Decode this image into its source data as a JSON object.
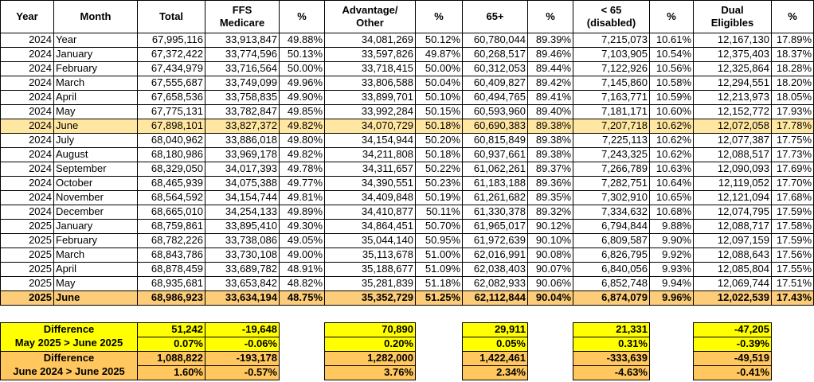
{
  "headers": [
    [
      "Year"
    ],
    [
      "Month"
    ],
    [
      "Total"
    ],
    [
      "FFS",
      "Medicare"
    ],
    [
      "%"
    ],
    [
      "Advantage/",
      "Other"
    ],
    [
      "%"
    ],
    [
      "65+"
    ],
    [
      "%"
    ],
    [
      "< 65",
      "(disabled)"
    ],
    [
      "%"
    ],
    [
      "Dual",
      "Eligibles"
    ],
    [
      "%"
    ]
  ],
  "rows": [
    [
      "2024",
      "Year",
      "67,995,116",
      "33,913,847",
      "49.88%",
      "34,081,269",
      "50.12%",
      "60,780,044",
      "89.39%",
      "7,215,073",
      "10.61%",
      "12,167,130",
      "17.89%"
    ],
    [
      "2024",
      "January",
      "67,372,422",
      "33,774,596",
      "50.13%",
      "33,597,826",
      "49.87%",
      "60,268,517",
      "89.46%",
      "7,103,905",
      "10.54%",
      "12,375,403",
      "18.37%"
    ],
    [
      "2024",
      "February",
      "67,434,979",
      "33,716,564",
      "50.00%",
      "33,718,415",
      "50.00%",
      "60,312,053",
      "89.44%",
      "7,122,926",
      "10.56%",
      "12,325,864",
      "18.28%"
    ],
    [
      "2024",
      "March",
      "67,555,687",
      "33,749,099",
      "49.96%",
      "33,806,588",
      "50.04%",
      "60,409,827",
      "89.42%",
      "7,145,860",
      "10.58%",
      "12,294,551",
      "18.20%"
    ],
    [
      "2024",
      "April",
      "67,658,536",
      "33,758,835",
      "49.90%",
      "33,899,701",
      "50.10%",
      "60,494,765",
      "89.41%",
      "7,163,771",
      "10.59%",
      "12,213,973",
      "18.05%"
    ],
    [
      "2024",
      "May",
      "67,775,131",
      "33,782,847",
      "49.85%",
      "33,992,284",
      "50.15%",
      "60,593,960",
      "89.40%",
      "7,181,171",
      "10.60%",
      "12,152,772",
      "17.93%"
    ],
    [
      "2024",
      "June",
      "67,898,101",
      "33,827,372",
      "49.82%",
      "34,070,729",
      "50.18%",
      "60,690,383",
      "89.38%",
      "7,207,718",
      "10.62%",
      "12,072,058",
      "17.78%"
    ],
    [
      "2024",
      "July",
      "68,040,962",
      "33,886,018",
      "49.80%",
      "34,154,944",
      "50.20%",
      "60,815,849",
      "89.38%",
      "7,225,113",
      "10.62%",
      "12,077,387",
      "17.75%"
    ],
    [
      "2024",
      "August",
      "68,180,986",
      "33,969,178",
      "49.82%",
      "34,211,808",
      "50.18%",
      "60,937,661",
      "89.38%",
      "7,243,325",
      "10.62%",
      "12,088,517",
      "17.73%"
    ],
    [
      "2024",
      "September",
      "68,329,050",
      "34,017,393",
      "49.78%",
      "34,311,657",
      "50.22%",
      "61,062,261",
      "89.37%",
      "7,266,789",
      "10.63%",
      "12,090,093",
      "17.69%"
    ],
    [
      "2024",
      "October",
      "68,465,939",
      "34,075,388",
      "49.77%",
      "34,390,551",
      "50.23%",
      "61,183,188",
      "89.36%",
      "7,282,751",
      "10.64%",
      "12,119,052",
      "17.70%"
    ],
    [
      "2024",
      "November",
      "68,564,592",
      "34,154,744",
      "49.81%",
      "34,409,848",
      "50.19%",
      "61,261,682",
      "89.35%",
      "7,302,910",
      "10.65%",
      "12,121,094",
      "17.68%"
    ],
    [
      "2024",
      "December",
      "68,665,010",
      "34,254,133",
      "49.89%",
      "34,410,877",
      "50.11%",
      "61,330,378",
      "89.32%",
      "7,334,632",
      "10.68%",
      "12,074,795",
      "17.59%"
    ],
    [
      "2025",
      "January",
      "68,759,861",
      "33,895,410",
      "49.30%",
      "34,864,451",
      "50.70%",
      "61,965,017",
      "90.12%",
      "6,794,844",
      "9.88%",
      "12,088,717",
      "17.58%"
    ],
    [
      "2025",
      "February",
      "68,782,226",
      "33,738,086",
      "49.05%",
      "35,044,140",
      "50.95%",
      "61,972,639",
      "90.10%",
      "6,809,587",
      "9.90%",
      "12,097,159",
      "17.59%"
    ],
    [
      "2025",
      "March",
      "68,843,786",
      "33,730,108",
      "49.00%",
      "35,113,678",
      "51.00%",
      "62,016,991",
      "90.08%",
      "6,826,795",
      "9.92%",
      "12,088,643",
      "17.56%"
    ],
    [
      "2025",
      "April",
      "68,878,459",
      "33,689,782",
      "48.91%",
      "35,188,677",
      "51.09%",
      "62,038,403",
      "90.07%",
      "6,840,056",
      "9.93%",
      "12,085,804",
      "17.55%"
    ],
    [
      "2025",
      "May",
      "68,935,681",
      "33,653,842",
      "48.82%",
      "35,281,839",
      "51.18%",
      "62,082,933",
      "90.06%",
      "6,852,748",
      "9.94%",
      "12,069,744",
      "17.51%"
    ],
    [
      "2025",
      "June",
      "68,986,923",
      "33,634,194",
      "48.75%",
      "35,352,729",
      "51.25%",
      "62,112,844",
      "90.04%",
      "6,874,079",
      "9.96%",
      "12,022,539",
      "17.43%"
    ]
  ],
  "summary": [
    {
      "label": "Difference",
      "sub": "May 2025 > June 2025",
      "diff": {
        "total": "51,242",
        "ffs": "-19,648",
        "adv": "70,890",
        "age65": "29,911",
        "under65": "21,331",
        "dual": "-47,205"
      },
      "pct": {
        "total": "0.07%",
        "ffs": "-0.06%",
        "adv": "0.20%",
        "age65": "0.05%",
        "under65": "0.31%",
        "dual": "-0.39%"
      }
    },
    {
      "label": "Difference",
      "sub": "June 2024 > June 2025",
      "diff": {
        "total": "1,088,822",
        "ffs": "-193,178",
        "adv": "1,282,000",
        "age65": "1,422,461",
        "under65": "-333,639",
        "dual": "-49,519"
      },
      "pct": {
        "total": "1.60%",
        "ffs": "-0.57%",
        "adv": "3.76%",
        "age65": "2.34%",
        "under65": "-4.63%",
        "dual": "-0.41%"
      }
    }
  ]
}
